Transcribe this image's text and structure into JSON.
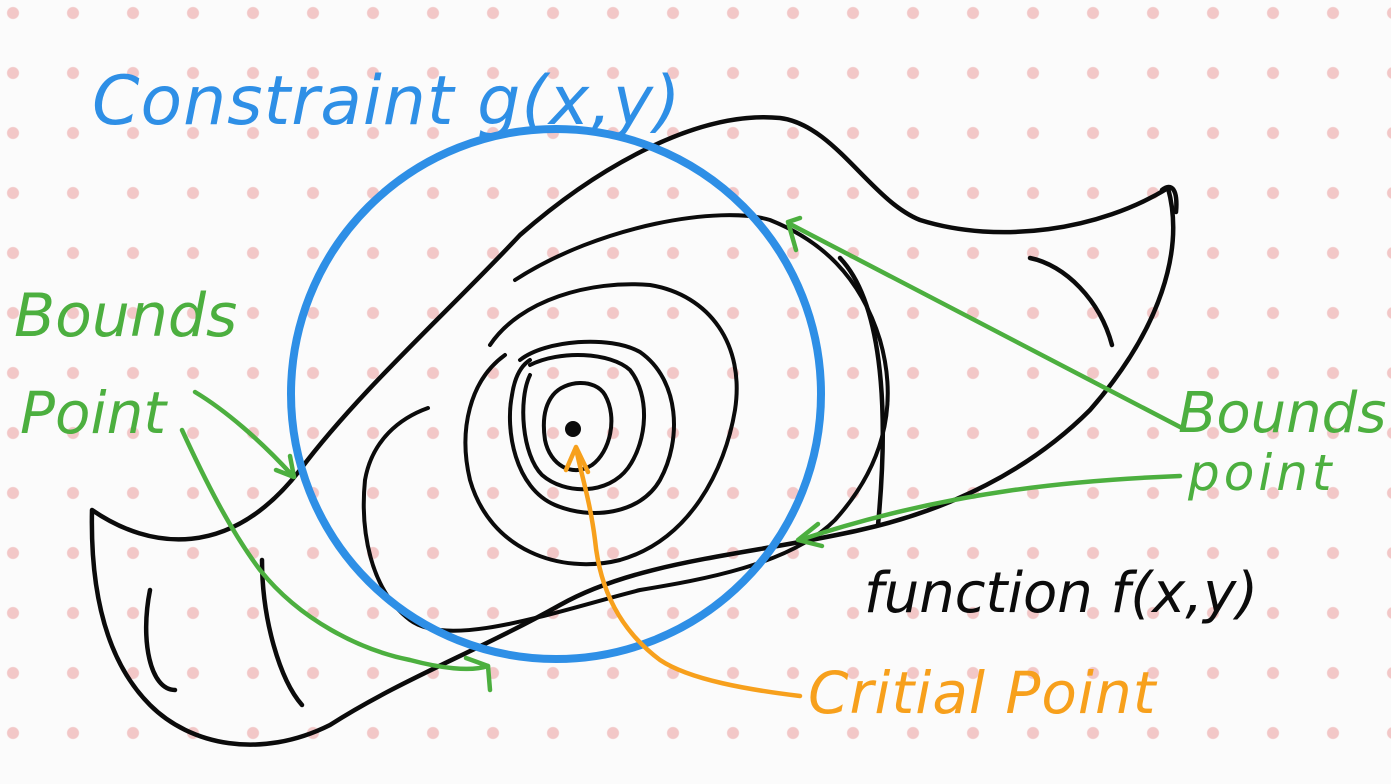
{
  "labels": {
    "constraint": "Constraint g(x,y)",
    "bounds_left_line1": "Bounds",
    "bounds_left_line2": "Point",
    "bounds_right_line1": "Bounds",
    "bounds_right_line2": "point",
    "function": "function f(x,y)",
    "critical": "Critial Point"
  },
  "colors": {
    "background": "#fbfbfb",
    "grid_dots": "#f2c7c7",
    "constraint": "#2e8fe6",
    "bounds": "#4caf3f",
    "function": "#0b0b0b",
    "critical": "#f7a01c"
  }
}
